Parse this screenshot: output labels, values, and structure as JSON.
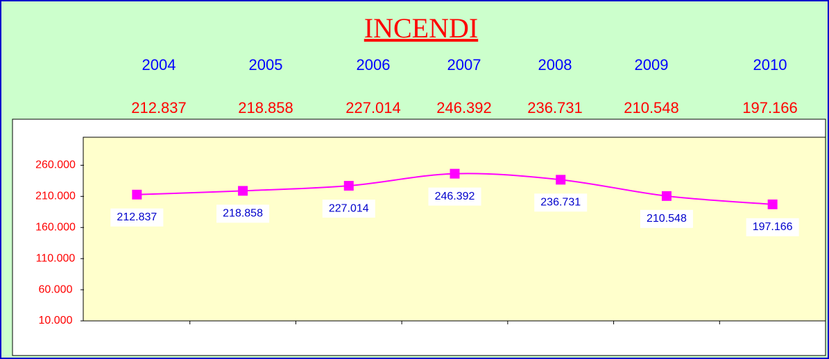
{
  "chart_data": {
    "type": "line",
    "title": "INCENDI",
    "categories": [
      "2004",
      "2005",
      "2006",
      "2007",
      "2008",
      "2009",
      "2010"
    ],
    "series": [
      {
        "color": "#ff00ff",
        "values": [
          212837,
          218858,
          227014,
          246392,
          236731,
          210548,
          197166
        ],
        "value_labels": [
          "212.837",
          "218.858",
          "227.014",
          "246.392",
          "236.731",
          "210.548",
          "197.166"
        ]
      }
    ],
    "ylim": [
      10000,
      305000
    ],
    "yticks": [
      {
        "value": 10000,
        "label": "10.000"
      },
      {
        "value": 60000,
        "label": "60.000"
      },
      {
        "value": 110000,
        "label": "110.000"
      },
      {
        "value": 160000,
        "label": "160.000"
      },
      {
        "value": 210000,
        "label": "210.000"
      },
      {
        "value": 260000,
        "label": "260.000"
      }
    ]
  }
}
